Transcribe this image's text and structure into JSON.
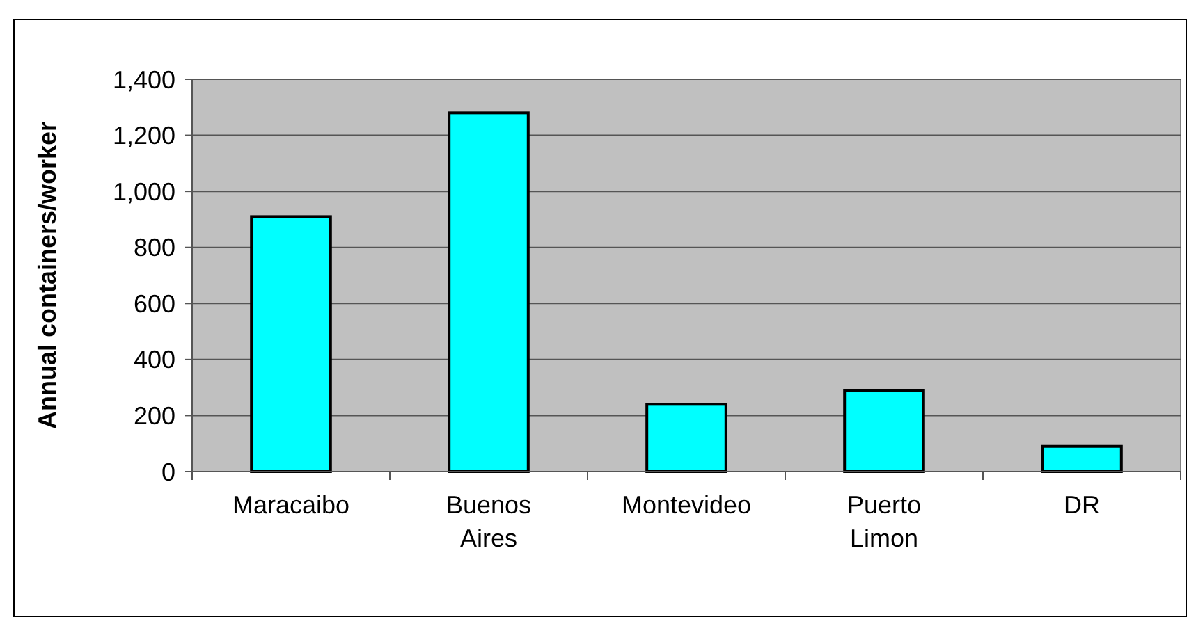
{
  "chart_data": {
    "type": "bar",
    "ylabel": "Annual containers/worker",
    "categories": [
      "Maracaibo",
      "Buenos Aires",
      "Montevideo",
      "Puerto Limon",
      "DR"
    ],
    "values": [
      910,
      1280,
      240,
      290,
      90
    ],
    "color": "#00ffff",
    "ylim": [
      0,
      1400
    ],
    "yticks": [
      0,
      200,
      400,
      600,
      800,
      {
        "value": 1000,
        "label": "1,000"
      },
      {
        "value": 1200,
        "label": "1,200"
      },
      {
        "value": 1400,
        "label": "1,400"
      }
    ],
    "grid": "y"
  }
}
